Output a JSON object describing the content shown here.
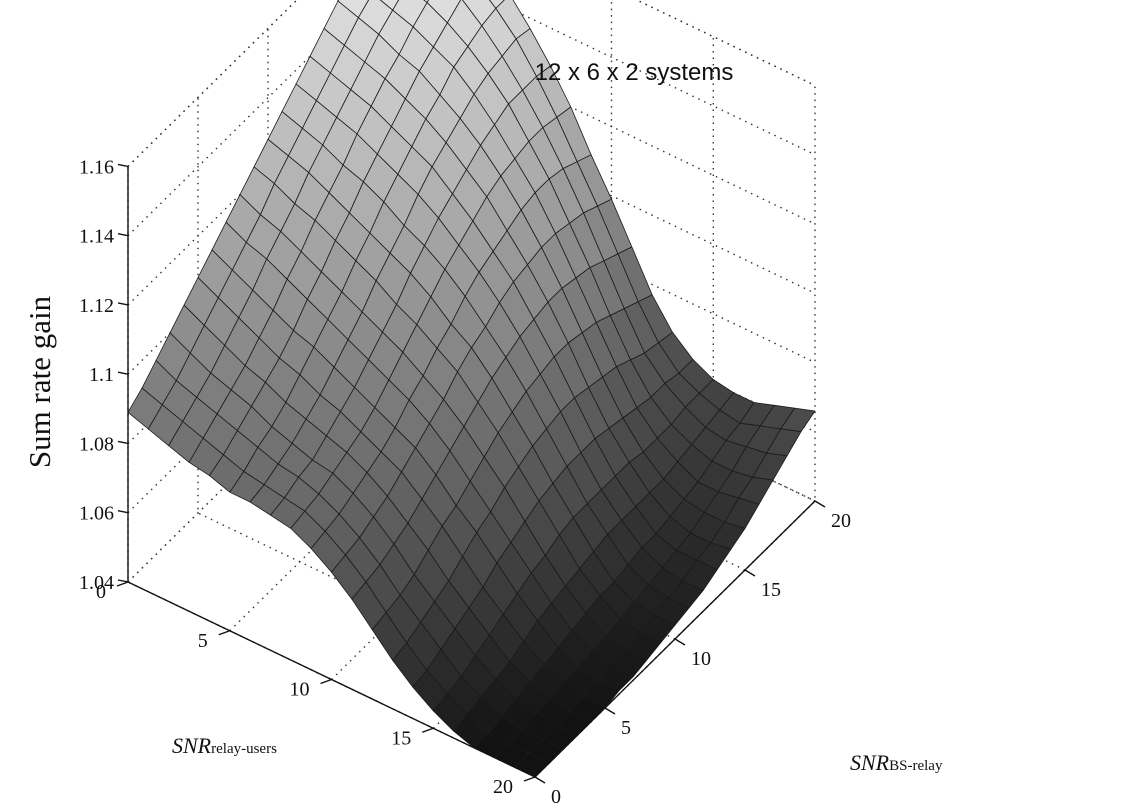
{
  "chart_data": {
    "type": "surface",
    "title": "12 x 6 x 2 systems",
    "zlabel": "Sum rate gain",
    "xlabel": {
      "main": "SNR",
      "sub": "BS-relay"
    },
    "ylabel": {
      "main": "SNR",
      "sub": "relay-users"
    },
    "x_ticks": [
      "0",
      "5",
      "10",
      "15",
      "20"
    ],
    "y_ticks": [
      "0",
      "5",
      "10",
      "15",
      "20"
    ],
    "z_ticks": [
      "1.04",
      "1.06",
      "1.08",
      "1.1",
      "1.12",
      "1.14",
      "1.16"
    ],
    "xlim": [
      0,
      20
    ],
    "ylim": [
      0,
      20
    ],
    "zlim": [
      1.04,
      1.16
    ],
    "grid": true,
    "shading": "grayscale by height",
    "x": [
      0,
      1,
      2,
      3,
      4,
      5,
      6,
      7,
      8,
      9,
      10,
      11,
      12,
      13,
      14,
      15,
      16,
      17,
      18,
      19,
      20
    ],
    "y": [
      0,
      1,
      2,
      3,
      4,
      5,
      6,
      7,
      8,
      9,
      10,
      11,
      12,
      13,
      14,
      15,
      16,
      17,
      18,
      19,
      20
    ],
    "z": [
      [
        1.089,
        1.092,
        1.096,
        1.1,
        1.104,
        1.108,
        1.112,
        1.116,
        1.12,
        1.124,
        1.128,
        1.132,
        1.136,
        1.14,
        1.144,
        1.148,
        1.151,
        1.154,
        1.157,
        1.159,
        1.16
      ],
      [
        1.087,
        1.09,
        1.093,
        1.097,
        1.101,
        1.105,
        1.109,
        1.113,
        1.117,
        1.122,
        1.126,
        1.13,
        1.134,
        1.138,
        1.142,
        1.146,
        1.149,
        1.152,
        1.155,
        1.157,
        1.158
      ],
      [
        1.085,
        1.088,
        1.091,
        1.094,
        1.098,
        1.102,
        1.106,
        1.111,
        1.115,
        1.119,
        1.124,
        1.128,
        1.132,
        1.136,
        1.14,
        1.144,
        1.147,
        1.15,
        1.153,
        1.155,
        1.156
      ],
      [
        1.083,
        1.086,
        1.089,
        1.092,
        1.095,
        1.099,
        1.103,
        1.108,
        1.112,
        1.117,
        1.121,
        1.125,
        1.13,
        1.134,
        1.138,
        1.141,
        1.145,
        1.148,
        1.151,
        1.153,
        1.153
      ],
      [
        1.082,
        1.084,
        1.087,
        1.09,
        1.093,
        1.096,
        1.1,
        1.105,
        1.109,
        1.114,
        1.118,
        1.123,
        1.127,
        1.131,
        1.135,
        1.139,
        1.142,
        1.145,
        1.148,
        1.149,
        1.149
      ],
      [
        1.08,
        1.082,
        1.085,
        1.087,
        1.09,
        1.094,
        1.098,
        1.102,
        1.106,
        1.111,
        1.115,
        1.12,
        1.124,
        1.128,
        1.132,
        1.135,
        1.139,
        1.141,
        1.143,
        1.144,
        1.144
      ],
      [
        1.08,
        1.081,
        1.083,
        1.085,
        1.088,
        1.091,
        1.095,
        1.099,
        1.103,
        1.108,
        1.112,
        1.116,
        1.121,
        1.125,
        1.128,
        1.131,
        1.134,
        1.136,
        1.137,
        1.138,
        1.137
      ],
      [
        1.079,
        1.08,
        1.082,
        1.083,
        1.086,
        1.089,
        1.092,
        1.096,
        1.1,
        1.104,
        1.109,
        1.113,
        1.117,
        1.12,
        1.123,
        1.126,
        1.128,
        1.13,
        1.13,
        1.13,
        1.129
      ],
      [
        1.078,
        1.079,
        1.08,
        1.082,
        1.084,
        1.086,
        1.089,
        1.093,
        1.097,
        1.101,
        1.105,
        1.109,
        1.112,
        1.115,
        1.118,
        1.12,
        1.121,
        1.122,
        1.122,
        1.121,
        1.12
      ],
      [
        1.075,
        1.076,
        1.077,
        1.079,
        1.081,
        1.083,
        1.086,
        1.09,
        1.093,
        1.097,
        1.1,
        1.104,
        1.107,
        1.109,
        1.111,
        1.113,
        1.114,
        1.114,
        1.113,
        1.111,
        1.109
      ],
      [
        1.071,
        1.072,
        1.073,
        1.075,
        1.077,
        1.08,
        1.083,
        1.086,
        1.089,
        1.093,
        1.096,
        1.098,
        1.101,
        1.103,
        1.104,
        1.105,
        1.105,
        1.104,
        1.103,
        1.101,
        1.099
      ],
      [
        1.066,
        1.067,
        1.068,
        1.07,
        1.072,
        1.075,
        1.078,
        1.081,
        1.084,
        1.087,
        1.09,
        1.092,
        1.094,
        1.095,
        1.096,
        1.096,
        1.095,
        1.094,
        1.092,
        1.09,
        1.088
      ],
      [
        1.06,
        1.061,
        1.062,
        1.064,
        1.067,
        1.07,
        1.072,
        1.075,
        1.078,
        1.081,
        1.083,
        1.085,
        1.086,
        1.087,
        1.087,
        1.086,
        1.085,
        1.083,
        1.081,
        1.079,
        1.077
      ],
      [
        1.054,
        1.055,
        1.057,
        1.059,
        1.061,
        1.064,
        1.067,
        1.069,
        1.072,
        1.074,
        1.076,
        1.077,
        1.078,
        1.078,
        1.077,
        1.076,
        1.075,
        1.073,
        1.071,
        1.07,
        1.069
      ],
      [
        1.049,
        1.05,
        1.052,
        1.054,
        1.056,
        1.058,
        1.061,
        1.063,
        1.065,
        1.067,
        1.068,
        1.069,
        1.069,
        1.069,
        1.068,
        1.067,
        1.066,
        1.065,
        1.065,
        1.064,
        1.064
      ],
      [
        1.045,
        1.046,
        1.047,
        1.049,
        1.051,
        1.053,
        1.055,
        1.057,
        1.058,
        1.06,
        1.061,
        1.061,
        1.061,
        1.061,
        1.061,
        1.06,
        1.06,
        1.06,
        1.061,
        1.061,
        1.061
      ],
      [
        1.042,
        1.043,
        1.044,
        1.045,
        1.046,
        1.048,
        1.05,
        1.051,
        1.052,
        1.053,
        1.054,
        1.055,
        1.055,
        1.055,
        1.055,
        1.055,
        1.056,
        1.057,
        1.058,
        1.059,
        1.06
      ],
      [
        1.04,
        1.04,
        1.041,
        1.042,
        1.043,
        1.044,
        1.045,
        1.046,
        1.047,
        1.048,
        1.048,
        1.049,
        1.05,
        1.05,
        1.051,
        1.052,
        1.053,
        1.055,
        1.057,
        1.058,
        1.06
      ],
      [
        1.04,
        1.04,
        1.04,
        1.041,
        1.041,
        1.042,
        1.042,
        1.043,
        1.043,
        1.044,
        1.045,
        1.046,
        1.047,
        1.048,
        1.049,
        1.051,
        1.053,
        1.055,
        1.058,
        1.06,
        1.062
      ],
      [
        1.04,
        1.04,
        1.04,
        1.04,
        1.04,
        1.041,
        1.041,
        1.042,
        1.042,
        1.043,
        1.044,
        1.045,
        1.046,
        1.048,
        1.049,
        1.051,
        1.054,
        1.056,
        1.059,
        1.062,
        1.064
      ],
      [
        1.04,
        1.04,
        1.04,
        1.04,
        1.04,
        1.04,
        1.041,
        1.041,
        1.042,
        1.043,
        1.044,
        1.045,
        1.046,
        1.048,
        1.05,
        1.052,
        1.055,
        1.058,
        1.061,
        1.064,
        1.066
      ]
    ]
  }
}
